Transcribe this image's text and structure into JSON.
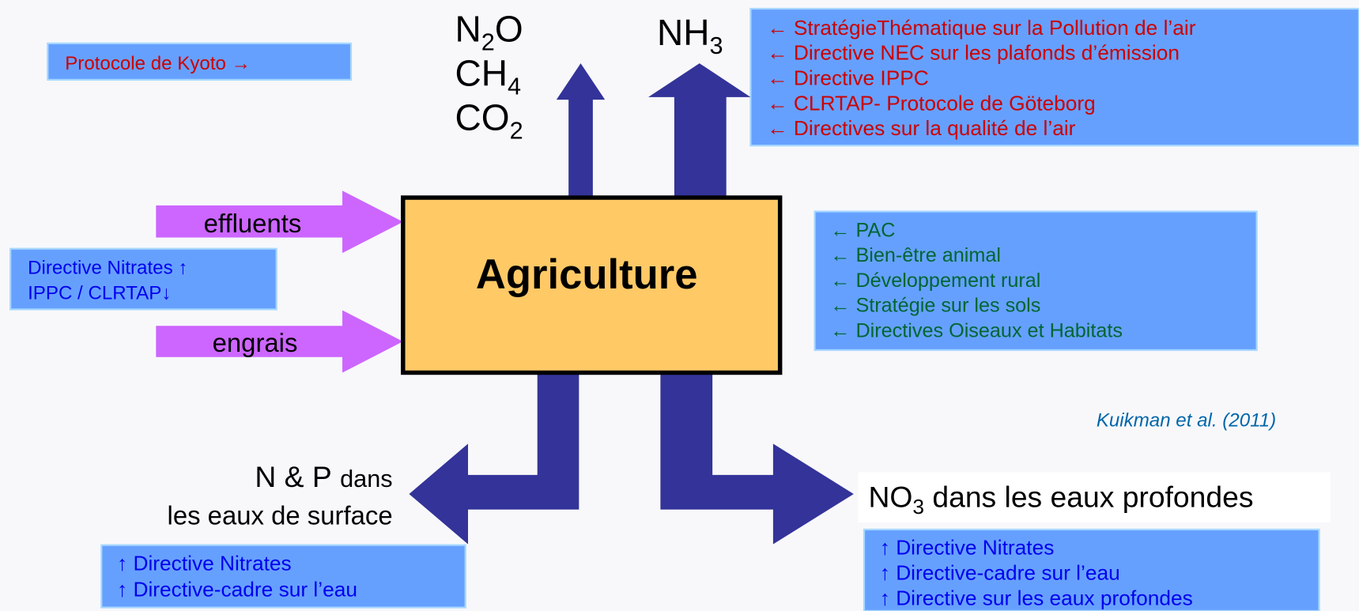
{
  "kyoto": "Protocole de Kyoto →",
  "gases": [
    {
      "base": "N",
      "sub": "2",
      "tail": "O"
    },
    {
      "base": "CH",
      "sub": "4"
    },
    {
      "base": "CO",
      "sub": "2"
    }
  ],
  "ammonia": {
    "base": "NH",
    "sub": "3"
  },
  "air_policies": [
    "← StratégieThématique sur la Pollution de l’air",
    "← Directive NEC sur les plafonds d’émission",
    "← Directive IPPC",
    "← CLRTAP- Protocole de Göteborg",
    "← Directives sur la qualité de l’air"
  ],
  "inputs": [
    "effluents",
    "engrais"
  ],
  "input_policies": [
    "Directive Nitrates ↑",
    "IPPC / CLRTAP↓"
  ],
  "center": "Agriculture",
  "farm_policies": [
    "← PAC",
    "← Bien-être animal",
    "← Développement rural",
    "← Stratégie sur les sols",
    "← Directives Oiseaux et Habitats"
  ],
  "citation": "Kuikman et al. (2011)",
  "surface": {
    "big": "N & P",
    "small": "dans",
    "line2": "les eaux de surface"
  },
  "surface_policies": [
    "↑ Directive Nitrates",
    "↑ Directive-cadre sur l’eau"
  ],
  "ground": {
    "base": "NO",
    "sub": "3",
    "tail": " dans les eaux profondes"
  },
  "ground_policies": [
    "↑ Directive Nitrates",
    "↑ Directive-cadre sur l’eau",
    "↑ Directive sur les eaux profondes"
  ]
}
